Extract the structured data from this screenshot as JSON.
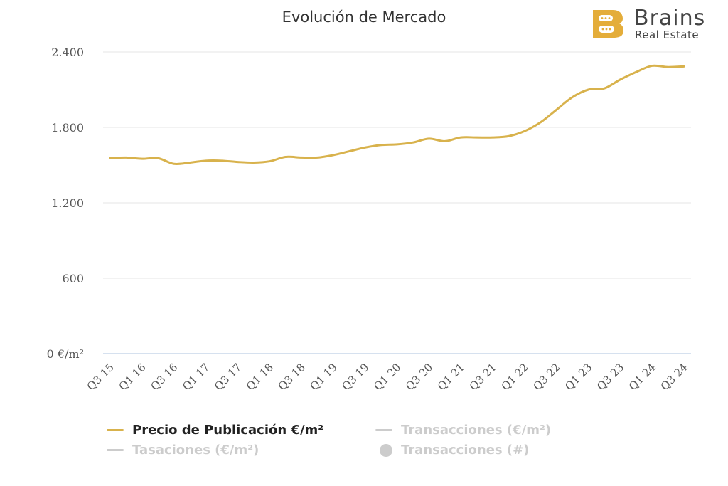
{
  "title": "Evolución de Mercado",
  "logo": {
    "name": "Brains",
    "sub": "Real Estate",
    "badge_color": "#E4AD3A"
  },
  "colors": {
    "series": "#D8B24C",
    "grid": "#e6e6e6",
    "axis": "#c8d7ea",
    "inactive": "#cccccc"
  },
  "legend": [
    {
      "label": "Precio de Publicación €/m²",
      "marker": "line",
      "active": true
    },
    {
      "label": "Transacciones (€/m²)",
      "marker": "line",
      "active": false
    },
    {
      "label": "Tasaciones (€/m²)",
      "marker": "line",
      "active": false
    },
    {
      "label": "Transacciones (#)",
      "marker": "dot",
      "active": false
    }
  ],
  "chart_data": {
    "type": "line",
    "title": "Evolución de Mercado",
    "xlabel": "",
    "ylabel": "",
    "ylim": [
      0,
      2400
    ],
    "yticks": [
      0,
      600,
      1200,
      1800,
      2400
    ],
    "ytick_labels": [
      "0 €/m²",
      "600",
      "1.200",
      "1.800",
      "2.400"
    ],
    "grid": true,
    "legend_position": "bottom",
    "x": [
      "Q3 15",
      "Q4 15",
      "Q1 16",
      "Q2 16",
      "Q3 16",
      "Q4 16",
      "Q1 17",
      "Q2 17",
      "Q3 17",
      "Q4 17",
      "Q1 18",
      "Q2 18",
      "Q3 18",
      "Q4 18",
      "Q1 19",
      "Q2 19",
      "Q3 19",
      "Q4 19",
      "Q1 20",
      "Q2 20",
      "Q3 20",
      "Q4 20",
      "Q1 21",
      "Q2 21",
      "Q3 21",
      "Q4 21",
      "Q1 22",
      "Q2 22",
      "Q3 22",
      "Q4 22",
      "Q1 23",
      "Q2 23",
      "Q3 23",
      "Q4 23",
      "Q1 24",
      "Q2 24",
      "Q3 24"
    ],
    "xtick_labels": [
      "Q3 15",
      "Q1 16",
      "Q3 16",
      "Q1 17",
      "Q3 17",
      "Q1 18",
      "Q3 18",
      "Q1 19",
      "Q3 19",
      "Q1 20",
      "Q3 20",
      "Q1 21",
      "Q3 21",
      "Q1 22",
      "Q3 22",
      "Q1 23",
      "Q3 23",
      "Q1 24",
      "Q3 24"
    ],
    "series": [
      {
        "name": "Precio de Publicación €/m²",
        "values": [
          1555,
          1560,
          1550,
          1555,
          1510,
          1520,
          1535,
          1535,
          1525,
          1520,
          1530,
          1565,
          1560,
          1560,
          1580,
          1610,
          1640,
          1660,
          1665,
          1680,
          1710,
          1690,
          1720,
          1720,
          1720,
          1730,
          1770,
          1840,
          1940,
          2040,
          2100,
          2110,
          2180,
          2240,
          2290,
          2280,
          2285
        ]
      }
    ]
  }
}
